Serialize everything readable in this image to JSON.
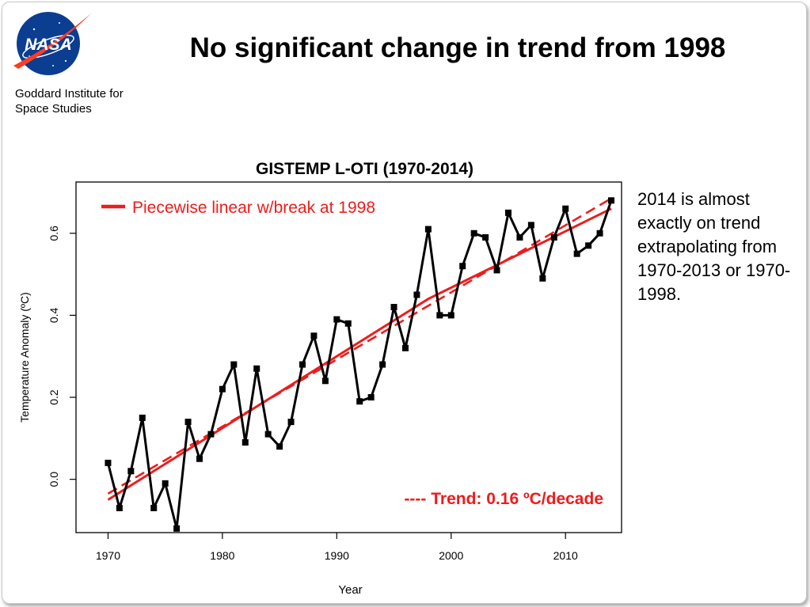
{
  "header": {
    "logo_text": "NASA",
    "org_line1": "Goddard Institute for",
    "org_line2": "Space Studies",
    "slide_title": "No significant change in trend from 1998"
  },
  "side_note": "2014 is almost exactly on trend extrapolating from 1970-2013 or 1970-1998.",
  "colors": {
    "data_line": "#000000",
    "trend": "#ee1c1c",
    "nasa_blue": "#0b3d91",
    "nasa_red": "#fc3d21"
  },
  "chart_data": {
    "type": "line",
    "title": "GISTEMP L-OTI (1970-2014)",
    "xlabel": "Year",
    "ylabel": "Temperature Anomaly (ºC)",
    "xlim": [
      1967.2,
      2014.9
    ],
    "ylim": [
      -0.13,
      0.725
    ],
    "xticks": [
      1970,
      1980,
      1990,
      2000,
      2010
    ],
    "yticks": [
      0.0,
      0.2,
      0.4,
      0.6
    ],
    "ytick_labels": [
      "0.0",
      "0.2",
      "0.4",
      "0.6"
    ],
    "grid": false,
    "legend_position": "top-left",
    "series": [
      {
        "style": "black line with square markers",
        "x": [
          1970,
          1971,
          1972,
          1973,
          1974,
          1975,
          1976,
          1977,
          1978,
          1979,
          1980,
          1981,
          1982,
          1983,
          1984,
          1985,
          1986,
          1987,
          1988,
          1989,
          1990,
          1991,
          1992,
          1993,
          1994,
          1995,
          1996,
          1997,
          1998,
          1999,
          2000,
          2001,
          2002,
          2003,
          2004,
          2005,
          2006,
          2007,
          2008,
          2009,
          2010,
          2011,
          2012,
          2013,
          2014
        ],
        "y": [
          0.04,
          -0.07,
          0.02,
          0.15,
          -0.07,
          -0.01,
          -0.12,
          0.14,
          0.05,
          0.11,
          0.22,
          0.28,
          0.09,
          0.27,
          0.11,
          0.08,
          0.14,
          0.28,
          0.35,
          0.24,
          0.39,
          0.38,
          0.19,
          0.2,
          0.28,
          0.42,
          0.32,
          0.45,
          0.61,
          0.4,
          0.4,
          0.52,
          0.6,
          0.59,
          0.51,
          0.65,
          0.59,
          0.62,
          0.49,
          0.59,
          0.66,
          0.55,
          0.57,
          0.6,
          0.68
        ]
      },
      {
        "name": "Piecewise linear w/break at 1998",
        "style": "solid red",
        "x": [
          1970,
          1998,
          2014
        ],
        "y": [
          -0.05,
          0.44,
          0.66
        ]
      },
      {
        "name": "---- Trend: 0.16 ºC/decade",
        "style": "dashed red",
        "x": [
          1970,
          2014
        ],
        "y": [
          -0.035,
          0.685
        ]
      }
    ]
  }
}
